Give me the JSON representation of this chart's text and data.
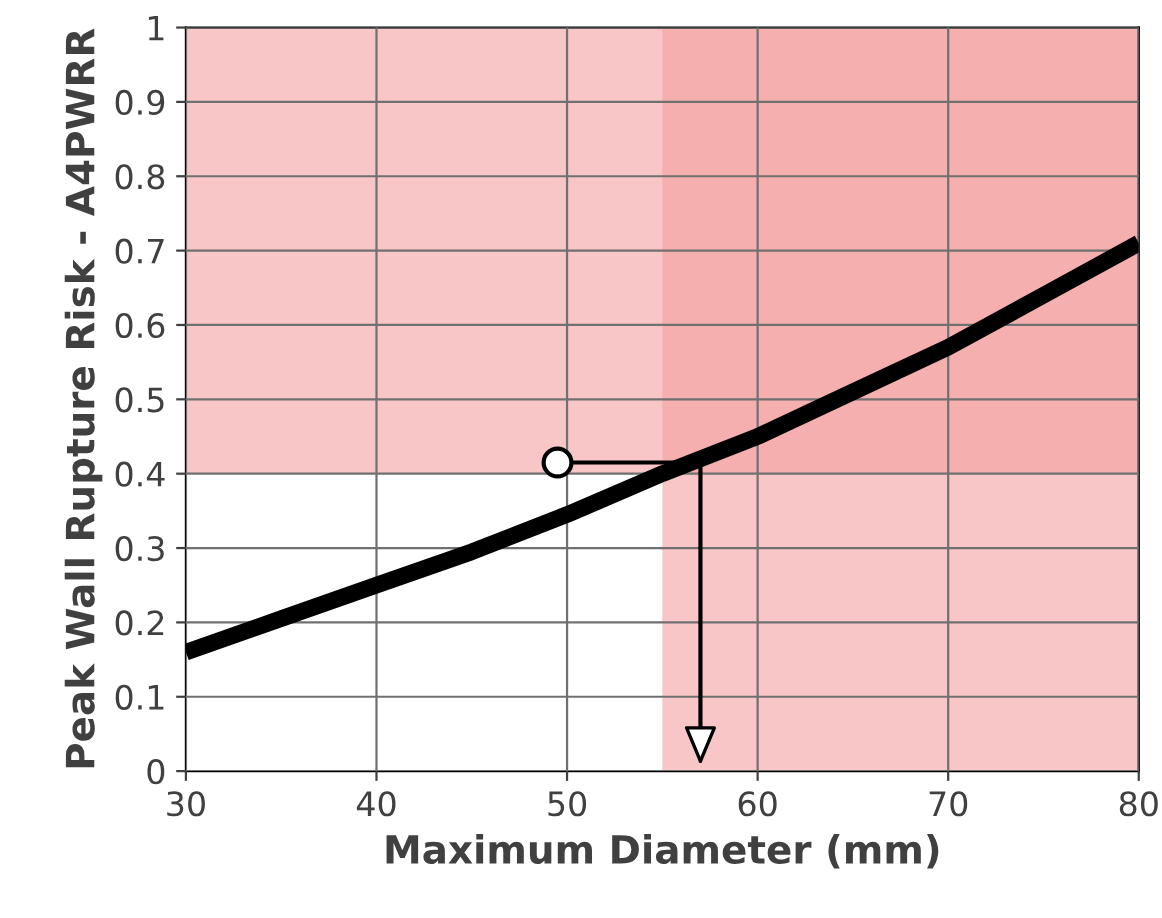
{
  "chart_data": {
    "type": "line",
    "xlabel": "Maximum Diameter (mm)",
    "ylabel": "Peak Wall Rupture Risk - A4PWRR",
    "x": [
      30,
      35,
      40,
      45,
      50,
      55,
      60,
      65,
      70,
      75,
      80
    ],
    "series": [
      {
        "color": "#000000",
        "values": [
          0.16,
          0.205,
          0.25,
          0.295,
          0.345,
          0.4,
          0.45,
          0.51,
          0.57,
          0.64,
          0.71
        ]
      }
    ],
    "xlim": [
      30,
      80
    ],
    "ylim": [
      0,
      1
    ],
    "xticks": [
      30,
      40,
      50,
      60,
      70,
      80
    ],
    "yticks": [
      0,
      0.1,
      0.2,
      0.3,
      0.4,
      0.5,
      0.6,
      0.7,
      0.8,
      0.9,
      1
    ],
    "bands": [
      {
        "axis": "x",
        "from": 55,
        "to": 80,
        "color": "#f4a0a0"
      },
      {
        "axis": "y",
        "from": 0.4,
        "to": 1,
        "color": "#f4a0a0"
      }
    ],
    "grid": true
  }
}
